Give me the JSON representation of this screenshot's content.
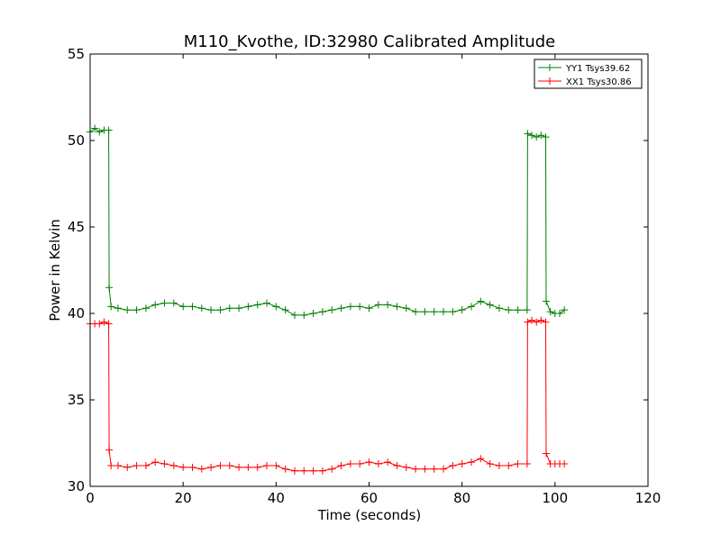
{
  "chart_data": {
    "type": "line",
    "title": "M110_Kvothe, ID:32980 Calibrated Amplitude",
    "xlabel": "Time (seconds)",
    "ylabel": "Power in Kelvin",
    "xlim": [
      0,
      120
    ],
    "ylim": [
      30,
      55
    ],
    "xticks": [
      0,
      20,
      40,
      60,
      80,
      100,
      120
    ],
    "yticks": [
      30,
      35,
      40,
      45,
      50,
      55
    ],
    "grid": false,
    "legend_position": "top-right",
    "marker": "+",
    "series": [
      {
        "name": "YY1 Tsys39.62",
        "color": "#008000",
        "points": [
          [
            0,
            50.5
          ],
          [
            1,
            50.7
          ],
          [
            2,
            50.5
          ],
          [
            3,
            50.6
          ],
          [
            4,
            50.6
          ],
          [
            4.1,
            41.5
          ],
          [
            4.5,
            40.4
          ],
          [
            6,
            40.3
          ],
          [
            8,
            40.2
          ],
          [
            10,
            40.2
          ],
          [
            12,
            40.3
          ],
          [
            14,
            40.5
          ],
          [
            16,
            40.6
          ],
          [
            18,
            40.6
          ],
          [
            20,
            40.4
          ],
          [
            22,
            40.4
          ],
          [
            24,
            40.3
          ],
          [
            26,
            40.2
          ],
          [
            28,
            40.2
          ],
          [
            30,
            40.3
          ],
          [
            32,
            40.3
          ],
          [
            34,
            40.4
          ],
          [
            36,
            40.5
          ],
          [
            38,
            40.6
          ],
          [
            40,
            40.4
          ],
          [
            42,
            40.2
          ],
          [
            44,
            39.9
          ],
          [
            46,
            39.9
          ],
          [
            48,
            40.0
          ],
          [
            50,
            40.1
          ],
          [
            52,
            40.2
          ],
          [
            54,
            40.3
          ],
          [
            56,
            40.4
          ],
          [
            58,
            40.4
          ],
          [
            60,
            40.3
          ],
          [
            62,
            40.5
          ],
          [
            64,
            40.5
          ],
          [
            66,
            40.4
          ],
          [
            68,
            40.3
          ],
          [
            70,
            40.1
          ],
          [
            72,
            40.1
          ],
          [
            74,
            40.1
          ],
          [
            76,
            40.1
          ],
          [
            78,
            40.1
          ],
          [
            80,
            40.2
          ],
          [
            82,
            40.4
          ],
          [
            84,
            40.7
          ],
          [
            86,
            40.5
          ],
          [
            88,
            40.3
          ],
          [
            90,
            40.2
          ],
          [
            92,
            40.2
          ],
          [
            94,
            40.2
          ],
          [
            94.1,
            50.4
          ],
          [
            95,
            50.3
          ],
          [
            96,
            50.2
          ],
          [
            97,
            50.3
          ],
          [
            98,
            50.2
          ],
          [
            98.1,
            40.7
          ],
          [
            99,
            40.1
          ],
          [
            100,
            40.0
          ],
          [
            101,
            40.0
          ],
          [
            102,
            40.2
          ]
        ]
      },
      {
        "name": "XX1 Tsys30.86",
        "color": "#ff0000",
        "points": [
          [
            0,
            39.4
          ],
          [
            1,
            39.4
          ],
          [
            2,
            39.4
          ],
          [
            3,
            39.5
          ],
          [
            4,
            39.4
          ],
          [
            4.1,
            32.1
          ],
          [
            4.5,
            31.2
          ],
          [
            6,
            31.2
          ],
          [
            8,
            31.1
          ],
          [
            10,
            31.2
          ],
          [
            12,
            31.2
          ],
          [
            14,
            31.4
          ],
          [
            16,
            31.3
          ],
          [
            18,
            31.2
          ],
          [
            20,
            31.1
          ],
          [
            22,
            31.1
          ],
          [
            24,
            31.0
          ],
          [
            26,
            31.1
          ],
          [
            28,
            31.2
          ],
          [
            30,
            31.2
          ],
          [
            32,
            31.1
          ],
          [
            34,
            31.1
          ],
          [
            36,
            31.1
          ],
          [
            38,
            31.2
          ],
          [
            40,
            31.2
          ],
          [
            42,
            31.0
          ],
          [
            44,
            30.9
          ],
          [
            46,
            30.9
          ],
          [
            48,
            30.9
          ],
          [
            50,
            30.9
          ],
          [
            52,
            31.0
          ],
          [
            54,
            31.2
          ],
          [
            56,
            31.3
          ],
          [
            58,
            31.3
          ],
          [
            60,
            31.4
          ],
          [
            62,
            31.3
          ],
          [
            64,
            31.4
          ],
          [
            66,
            31.2
          ],
          [
            68,
            31.1
          ],
          [
            70,
            31.0
          ],
          [
            72,
            31.0
          ],
          [
            74,
            31.0
          ],
          [
            76,
            31.0
          ],
          [
            78,
            31.2
          ],
          [
            80,
            31.3
          ],
          [
            82,
            31.4
          ],
          [
            84,
            31.6
          ],
          [
            86,
            31.3
          ],
          [
            88,
            31.2
          ],
          [
            90,
            31.2
          ],
          [
            92,
            31.3
          ],
          [
            94,
            31.3
          ],
          [
            94.1,
            39.5
          ],
          [
            95,
            39.6
          ],
          [
            96,
            39.5
          ],
          [
            97,
            39.6
          ],
          [
            98,
            39.5
          ],
          [
            98.1,
            31.9
          ],
          [
            99,
            31.3
          ],
          [
            100,
            31.3
          ],
          [
            101,
            31.3
          ],
          [
            102,
            31.3
          ]
        ]
      }
    ]
  }
}
